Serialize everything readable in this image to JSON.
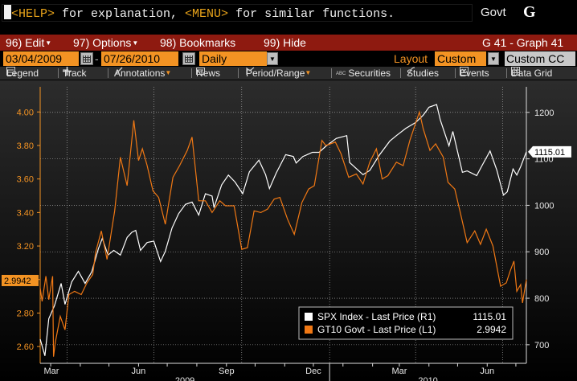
{
  "command_line": {
    "help_key": "<HELP>",
    "help_text": " for explanation, ",
    "menu_key": "<MENU>",
    "menu_text": " for similar functions.",
    "market": "Govt",
    "go_key": "G"
  },
  "menubar": {
    "items": [
      {
        "num": "96)",
        "label": "Edit",
        "dropdown": true
      },
      {
        "num": "97)",
        "label": "Options",
        "dropdown": true
      },
      {
        "num": "98)",
        "label": "Bookmarks",
        "dropdown": false
      },
      {
        "num": "99)",
        "label": "Hide",
        "dropdown": false
      }
    ],
    "screen_id": "G 41 - Graph 41"
  },
  "datebar": {
    "start_date": "03/04/2009",
    "end_date": "07/26/2010",
    "periodicity": "Daily",
    "layout_label": "Layout",
    "layout_value": "Custom",
    "layout_name": "Custom CC"
  },
  "toolbar": {
    "items": [
      {
        "label": "Legend",
        "icon": "legend-icon"
      },
      {
        "label": "Track",
        "icon": "crosshair-icon"
      },
      {
        "label": "Annotations",
        "icon": "pencil-icon"
      },
      {
        "label": "News",
        "icon": "news-icon"
      },
      {
        "label": "Period/Range",
        "icon": "period-icon"
      },
      {
        "label": "Securities",
        "icon": "securities-icon"
      },
      {
        "label": "Studies",
        "icon": "studies-icon"
      },
      {
        "label": "Events",
        "icon": "events-icon"
      },
      {
        "label": "Data Grid",
        "icon": "grid-icon"
      }
    ]
  },
  "colors": {
    "spx": "#ffffff",
    "gt10": "#f07814",
    "left_axis": "#f39323",
    "background_top": "#2c2c2c",
    "background_bottom": "#000000"
  },
  "chart_data": {
    "type": "line",
    "x_range": [
      "2009-03-04",
      "2010-07-26"
    ],
    "left_axis": {
      "ticks": [
        "2.60",
        "2.80",
        "3.00",
        "3.20",
        "3.40",
        "3.60",
        "3.80",
        "4.00"
      ],
      "ylim": [
        2.5,
        4.15
      ]
    },
    "right_axis": {
      "ticks": [
        "700",
        "800",
        "900",
        "1000",
        "1100",
        "1200"
      ],
      "ylim": [
        660,
        1255
      ]
    },
    "x_month_labels": [
      "Mar",
      "Jun",
      "Sep",
      "Dec",
      "Mar",
      "Jun"
    ],
    "x_year_labels": [
      "2009",
      "2010"
    ],
    "grid": true,
    "legend_placement": "bottom-right",
    "last_value_tags": {
      "left": "2.9942",
      "right": "1115.01"
    },
    "series": [
      {
        "name": "SPX Index - Last Price (R1)",
        "last": "1115.01",
        "axis": "right",
        "points": [
          [
            "2009-03-04",
            712
          ],
          [
            "2009-03-09",
            676
          ],
          [
            "2009-03-13",
            756
          ],
          [
            "2009-03-19",
            784
          ],
          [
            "2009-03-26",
            832
          ],
          [
            "2009-03-30",
            787
          ],
          [
            "2009-04-06",
            835
          ],
          [
            "2009-04-13",
            858
          ],
          [
            "2009-04-20",
            832
          ],
          [
            "2009-04-27",
            857
          ],
          [
            "2009-05-04",
            907
          ],
          [
            "2009-05-08",
            929
          ],
          [
            "2009-05-14",
            893
          ],
          [
            "2009-05-20",
            903
          ],
          [
            "2009-05-27",
            893
          ],
          [
            "2009-06-03",
            931
          ],
          [
            "2009-06-08",
            942
          ],
          [
            "2009-06-12",
            946
          ],
          [
            "2009-06-17",
            903
          ],
          [
            "2009-06-24",
            920
          ],
          [
            "2009-07-01",
            923
          ],
          [
            "2009-07-08",
            879
          ],
          [
            "2009-07-13",
            901
          ],
          [
            "2009-07-20",
            951
          ],
          [
            "2009-07-27",
            982
          ],
          [
            "2009-08-03",
            1002
          ],
          [
            "2009-08-10",
            1007
          ],
          [
            "2009-08-17",
            979
          ],
          [
            "2009-08-24",
            1025
          ],
          [
            "2009-08-31",
            1020
          ],
          [
            "2009-09-02",
            995
          ],
          [
            "2009-09-10",
            1044
          ],
          [
            "2009-09-17",
            1065
          ],
          [
            "2009-09-24",
            1050
          ],
          [
            "2009-10-02",
            1025
          ],
          [
            "2009-10-09",
            1072
          ],
          [
            "2009-10-19",
            1097
          ],
          [
            "2009-10-26",
            1066
          ],
          [
            "2009-10-30",
            1036
          ],
          [
            "2009-11-06",
            1069
          ],
          [
            "2009-11-16",
            1109
          ],
          [
            "2009-11-24",
            1105
          ],
          [
            "2009-11-27",
            1091
          ],
          [
            "2009-12-04",
            1105
          ],
          [
            "2009-12-14",
            1114
          ],
          [
            "2009-12-21",
            1114
          ],
          [
            "2009-12-28",
            1127
          ],
          [
            "2010-01-08",
            1144
          ],
          [
            "2010-01-19",
            1150
          ],
          [
            "2010-01-22",
            1092
          ],
          [
            "2010-02-05",
            1066
          ],
          [
            "2010-02-12",
            1075
          ],
          [
            "2010-02-22",
            1108
          ],
          [
            "2010-03-05",
            1138
          ],
          [
            "2010-03-12",
            1150
          ],
          [
            "2010-03-22",
            1166
          ],
          [
            "2010-04-01",
            1178
          ],
          [
            "2010-04-09",
            1194
          ],
          [
            "2010-04-15",
            1211
          ],
          [
            "2010-04-23",
            1217
          ],
          [
            "2010-04-27",
            1183
          ],
          [
            "2010-05-06",
            1128
          ],
          [
            "2010-05-10",
            1159
          ],
          [
            "2010-05-20",
            1071
          ],
          [
            "2010-05-25",
            1074
          ],
          [
            "2010-06-04",
            1064
          ],
          [
            "2010-06-10",
            1087
          ],
          [
            "2010-06-18",
            1117
          ],
          [
            "2010-06-25",
            1076
          ],
          [
            "2010-07-02",
            1022
          ],
          [
            "2010-07-06",
            1029
          ],
          [
            "2010-07-12",
            1078
          ],
          [
            "2010-07-16",
            1065
          ],
          [
            "2010-07-20",
            1083
          ],
          [
            "2010-07-26",
            1115
          ]
        ]
      },
      {
        "name": "GT10 Govt - Last Price (L1)",
        "last": "2.9942",
        "axis": "left",
        "points": [
          [
            "2009-03-04",
            2.95
          ],
          [
            "2009-03-06",
            2.87
          ],
          [
            "2009-03-10",
            3.02
          ],
          [
            "2009-03-13",
            2.88
          ],
          [
            "2009-03-17",
            3.02
          ],
          [
            "2009-03-18",
            2.54
          ],
          [
            "2009-03-20",
            2.63
          ],
          [
            "2009-03-25",
            2.78
          ],
          [
            "2009-03-30",
            2.7
          ],
          [
            "2009-04-03",
            2.91
          ],
          [
            "2009-04-09",
            2.93
          ],
          [
            "2009-04-16",
            2.91
          ],
          [
            "2009-04-22",
            2.98
          ],
          [
            "2009-04-28",
            3.03
          ],
          [
            "2009-05-01",
            3.16
          ],
          [
            "2009-05-07",
            3.29
          ],
          [
            "2009-05-13",
            3.12
          ],
          [
            "2009-05-21",
            3.41
          ],
          [
            "2009-05-27",
            3.73
          ],
          [
            "2009-06-03",
            3.56
          ],
          [
            "2009-06-10",
            3.95
          ],
          [
            "2009-06-15",
            3.71
          ],
          [
            "2009-06-19",
            3.78
          ],
          [
            "2009-06-24",
            3.68
          ],
          [
            "2009-06-30",
            3.53
          ],
          [
            "2009-07-06",
            3.49
          ],
          [
            "2009-07-13",
            3.33
          ],
          [
            "2009-07-21",
            3.61
          ],
          [
            "2009-07-28",
            3.68
          ],
          [
            "2009-08-05",
            3.77
          ],
          [
            "2009-08-10",
            3.85
          ],
          [
            "2009-08-17",
            3.47
          ],
          [
            "2009-08-24",
            3.47
          ],
          [
            "2009-08-31",
            3.4
          ],
          [
            "2009-09-08",
            3.47
          ],
          [
            "2009-09-14",
            3.44
          ],
          [
            "2009-09-23",
            3.44
          ],
          [
            "2009-10-01",
            3.18
          ],
          [
            "2009-10-07",
            3.19
          ],
          [
            "2009-10-14",
            3.41
          ],
          [
            "2009-10-21",
            3.4
          ],
          [
            "2009-10-28",
            3.42
          ],
          [
            "2009-11-04",
            3.48
          ],
          [
            "2009-11-10",
            3.49
          ],
          [
            "2009-11-18",
            3.36
          ],
          [
            "2009-11-25",
            3.27
          ],
          [
            "2009-12-03",
            3.46
          ],
          [
            "2009-12-10",
            3.54
          ],
          [
            "2009-12-16",
            3.56
          ],
          [
            "2009-12-24",
            3.83
          ],
          [
            "2009-12-28",
            3.8
          ],
          [
            "2010-01-07",
            3.82
          ],
          [
            "2010-01-13",
            3.75
          ],
          [
            "2010-01-21",
            3.61
          ],
          [
            "2010-01-29",
            3.63
          ],
          [
            "2010-02-05",
            3.57
          ],
          [
            "2010-02-12",
            3.7
          ],
          [
            "2010-02-19",
            3.78
          ],
          [
            "2010-02-25",
            3.6
          ],
          [
            "2010-03-03",
            3.62
          ],
          [
            "2010-03-12",
            3.7
          ],
          [
            "2010-03-19",
            3.68
          ],
          [
            "2010-03-26",
            3.83
          ],
          [
            "2010-04-05",
            4.0
          ],
          [
            "2010-04-09",
            3.9
          ],
          [
            "2010-04-16",
            3.77
          ],
          [
            "2010-04-22",
            3.81
          ],
          [
            "2010-04-30",
            3.73
          ],
          [
            "2010-05-05",
            3.58
          ],
          [
            "2010-05-12",
            3.54
          ],
          [
            "2010-05-19",
            3.37
          ],
          [
            "2010-05-25",
            3.22
          ],
          [
            "2010-06-02",
            3.29
          ],
          [
            "2010-06-08",
            3.21
          ],
          [
            "2010-06-14",
            3.3
          ],
          [
            "2010-06-21",
            3.2
          ],
          [
            "2010-06-29",
            2.96
          ],
          [
            "2010-07-05",
            2.98
          ],
          [
            "2010-07-09",
            3.05
          ],
          [
            "2010-07-13",
            3.11
          ],
          [
            "2010-07-16",
            2.93
          ],
          [
            "2010-07-20",
            2.97
          ],
          [
            "2010-07-22",
            2.86
          ],
          [
            "2010-07-26",
            3.0
          ]
        ]
      }
    ]
  }
}
